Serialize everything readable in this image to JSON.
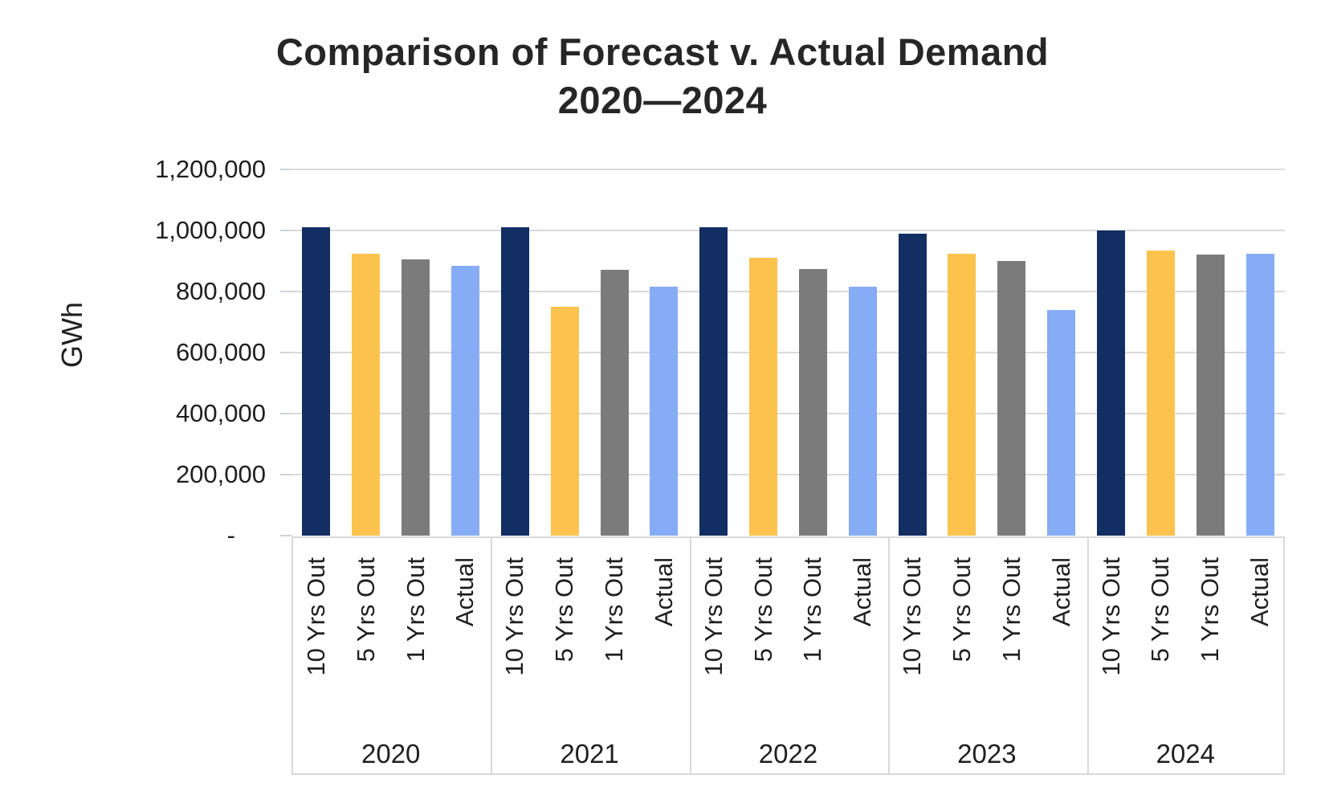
{
  "chart_data": {
    "type": "bar",
    "title": "Comparison of Forecast v. Actual Demand",
    "title_line2": "2020—2024",
    "ylabel": "GWh",
    "ylim": [
      0,
      1200000
    ],
    "y_tick_interval": 200000,
    "y_ticks": [
      {
        "value": 1200000,
        "label": "1,200,000"
      },
      {
        "value": 1000000,
        "label": "1,000,000"
      },
      {
        "value": 800000,
        "label": "800,000"
      },
      {
        "value": 600000,
        "label": "600,000"
      },
      {
        "value": 400000,
        "label": "400,000"
      },
      {
        "value": 200000,
        "label": "200,000"
      },
      {
        "value": 0,
        "label": "-"
      }
    ],
    "grid": true,
    "legend_position": "none",
    "categories": [
      "2020",
      "2021",
      "2022",
      "2023",
      "2024"
    ],
    "bar_labels_per_group": [
      "10 Yrs Out",
      "5 Yrs Out",
      "1 Yrs Out",
      "Actual"
    ],
    "series": [
      {
        "name": "10 Yrs Out",
        "color": "#132E63",
        "values": [
          1010000,
          1010000,
          1010000,
          990000,
          1000000
        ]
      },
      {
        "name": "5 Yrs Out",
        "color": "#FBC34E",
        "values": [
          925000,
          750000,
          910000,
          925000,
          935000
        ]
      },
      {
        "name": "1 Yrs Out",
        "color": "#7B7B7B",
        "values": [
          905000,
          870000,
          875000,
          900000,
          920000
        ]
      },
      {
        "name": "Actual",
        "color": "#86ACF5",
        "values": [
          885000,
          815000,
          815000,
          740000,
          925000
        ]
      }
    ]
  },
  "style_colors": {
    "gridline": "#dadada",
    "axis_box_border": "#d9d9d9",
    "text": "#1f1f1f",
    "title_text": "#262626"
  }
}
